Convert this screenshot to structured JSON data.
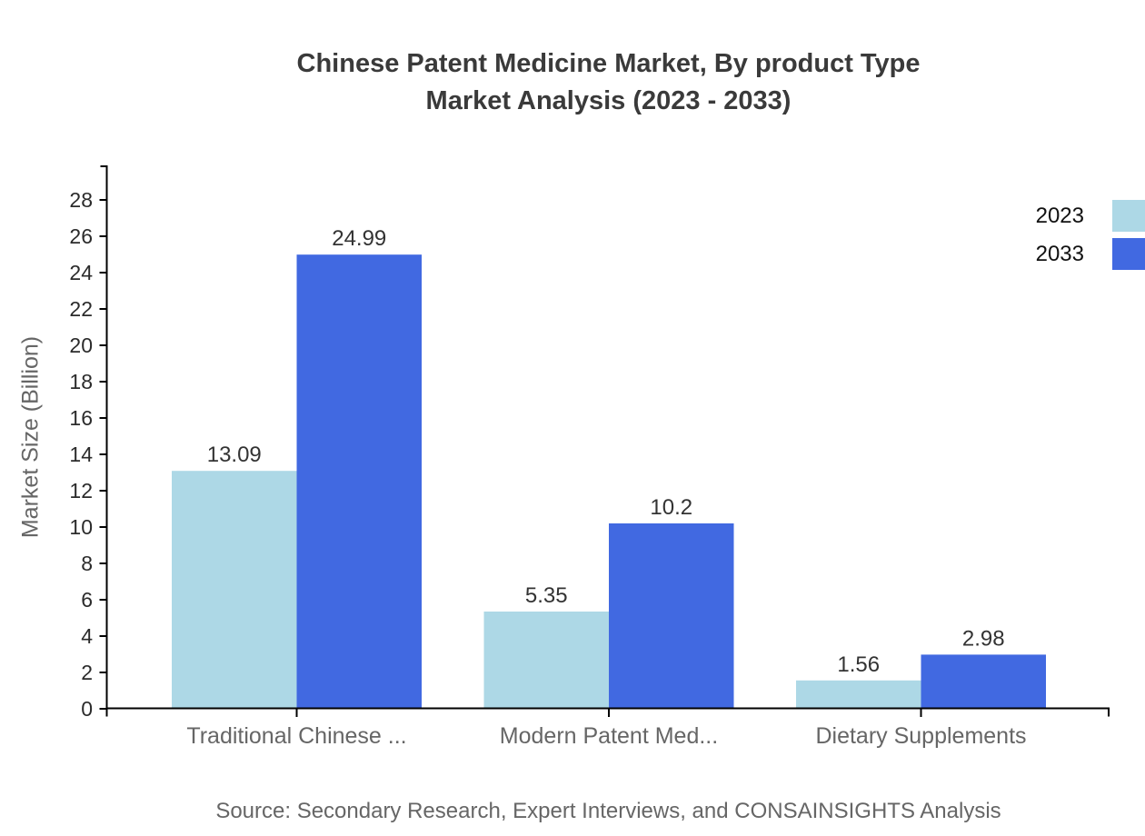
{
  "title": {
    "line1": "Chinese Patent Medicine Market, By product Type",
    "line2": "Market Analysis (2023 - 2033)"
  },
  "chart_data": {
    "type": "bar",
    "title": "Chinese Patent Medicine Market, By product Type - Market Analysis (2023 - 2033)",
    "categories": [
      "Traditional Chinese ...",
      "Modern Patent Med...",
      "Dietary Supplements"
    ],
    "series": [
      {
        "name": "2023",
        "color": "#ADD8E6",
        "values": [
          13.09,
          5.35,
          1.56
        ]
      },
      {
        "name": "2033",
        "color": "#4169E1",
        "values": [
          24.99,
          10.2,
          2.98
        ]
      }
    ],
    "xlabel": "",
    "ylabel": "Market Size (Billion)",
    "ylim": [
      0,
      28
    ],
    "ytick_step": 2,
    "grid": false,
    "legend_position": "top-right",
    "bar_value_labels": true
  },
  "source": "Source: Secondary Research, Expert Interviews, and CONSAINSIGHTS Analysis",
  "colors": {
    "background": "#ffffff",
    "axis": "#000000",
    "tick_label": "#2b2b2b",
    "value_label": "#333333",
    "category_label": "#666666",
    "title_text": "#3a3a3a",
    "source_text": "#666666",
    "legend_text": "#111111",
    "series_2023": "#ADD8E6",
    "series_2033": "#4169E1"
  }
}
